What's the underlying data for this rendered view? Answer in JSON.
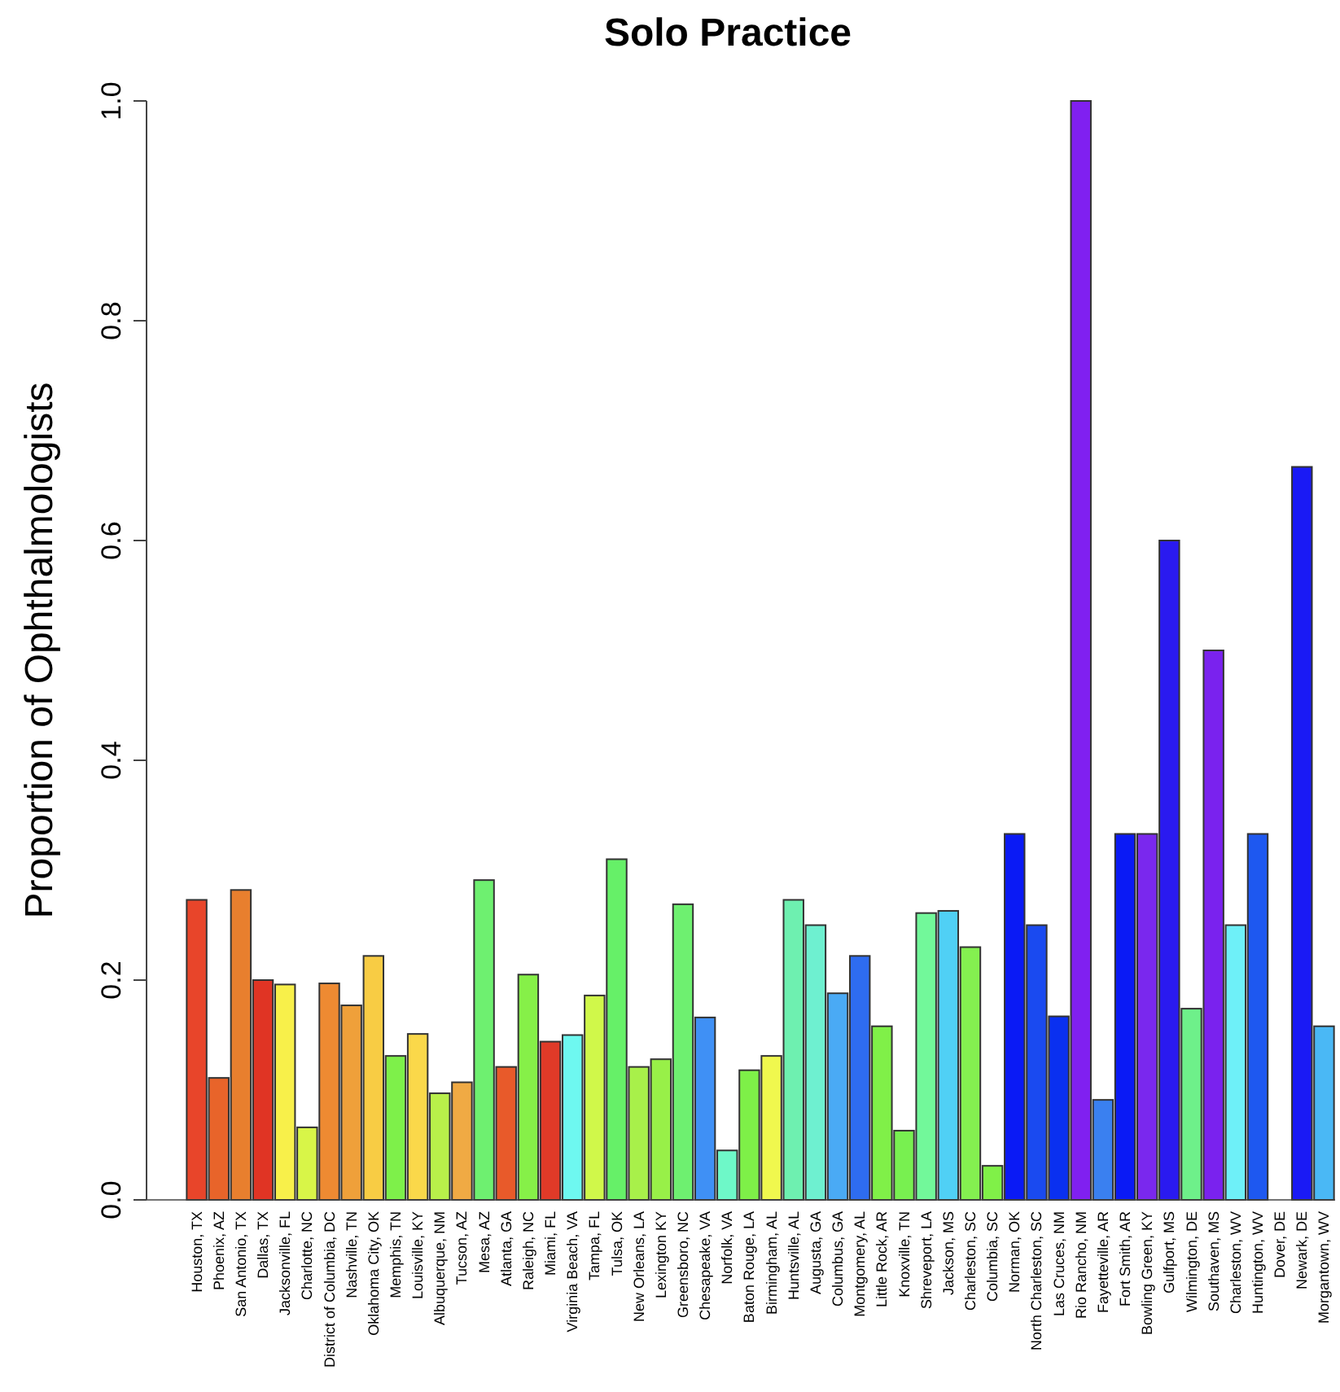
{
  "chart_data": {
    "type": "bar",
    "title": "Solo Practice",
    "ylabel": "Proportion of Ophthalmologists",
    "categories": [
      "Houston, TX",
      "Phoenix, AZ",
      "San Antonio, TX",
      "Dallas, TX",
      "Jacksonville, FL",
      "Charlotte, NC",
      "District of Columbia, DC",
      "Nashville, TN",
      "Oklahoma City, OK",
      "Memphis, TN",
      "Louisville, KY",
      "Albuquerque, NM",
      "Tucson, AZ",
      "Mesa, AZ",
      "Atlanta, GA",
      "Raleigh, NC",
      "Miami, FL",
      "Virginia Beach, VA",
      "Tampa, FL",
      "Tulsa, OK",
      "New Orleans, LA",
      "Lexington KY",
      "Greensboro, NC",
      "Chesapeake, VA",
      "Norfolk, VA",
      "Baton Rouge, LA",
      "Birmingham, AL",
      "Huntsville, AL",
      "Augusta, GA",
      "Columbus, GA",
      "Montgomery, AL",
      "Little Rock, AR",
      "Knoxville, TN",
      "Shreveport, LA",
      "Jackson, MS",
      "Charleston, SC",
      "Columbia, SC",
      "Norman, OK",
      "North Charleston, SC",
      "Las Cruces, NM",
      "Rio Rancho, NM",
      "Fayetteville, AR",
      "Fort Smith, AR",
      "Bowling Green, KY",
      "Gulfport, MS",
      "Wilmington, DE",
      "Southaven, MS",
      "Charleston, WV",
      "Huntington, WV",
      "Dover, DE",
      "Newark, DE",
      "Morgantown, WV"
    ],
    "values": [
      0.273,
      0.111,
      0.282,
      0.2,
      0.196,
      0.066,
      0.197,
      0.177,
      0.222,
      0.131,
      0.151,
      0.097,
      0.107,
      0.291,
      0.121,
      0.205,
      0.144,
      0.15,
      0.186,
      0.31,
      0.121,
      0.128,
      0.269,
      0.166,
      0.045,
      0.118,
      0.131,
      0.273,
      0.25,
      0.188,
      0.222,
      0.158,
      0.063,
      0.261,
      0.263,
      0.23,
      0.031,
      0.333,
      0.25,
      0.167,
      1.0,
      0.091,
      0.333,
      0.333,
      0.6,
      0.174,
      0.5,
      0.25,
      0.333,
      0,
      0.667,
      0.158
    ],
    "colors": [
      "#e8452a",
      "#e8642a",
      "#e87f2e",
      "#e03424",
      "#f8f04a",
      "#d8f548",
      "#ee8a32",
      "#efa03a",
      "#f8cc44",
      "#7ef04a",
      "#fad84a",
      "#b8f04a",
      "#f0aa44",
      "#6ef070",
      "#e85a2a",
      "#86f048",
      "#e03a28",
      "#6ef8f0",
      "#d0f84a",
      "#66f068",
      "#a8f04a",
      "#98f048",
      "#6ef070",
      "#3f90f5",
      "#6ef8c8",
      "#7ef048",
      "#f0f84e",
      "#6ef0b0",
      "#6ef0d0",
      "#4aaaf5",
      "#2e6cf0",
      "#80f048",
      "#78f050",
      "#72f89a",
      "#50d0f5",
      "#84f050",
      "#80f048",
      "#0a1af5",
      "#1a4af0",
      "#0a30f0",
      "#8020f0",
      "#3a80f0",
      "#0a1af5",
      "#7a28ee",
      "#2a1af0",
      "#6ef08a",
      "#7a22ee",
      "#6ef0f8",
      "#1e58f0",
      "#1a1af0",
      "#1a1af5",
      "#4ab8f5"
    ],
    "ylim": [
      0,
      1.0
    ],
    "yticks": [
      {
        "value": 0,
        "label": "0.0"
      },
      {
        "value": 0.2,
        "label": "0.2"
      },
      {
        "value": 0.4,
        "label": "0.4"
      },
      {
        "value": 0.6,
        "label": "0.6"
      },
      {
        "value": 0.8,
        "label": "0.8"
      },
      {
        "value": 1.0,
        "label": "1.0"
      }
    ],
    "grid": false
  }
}
